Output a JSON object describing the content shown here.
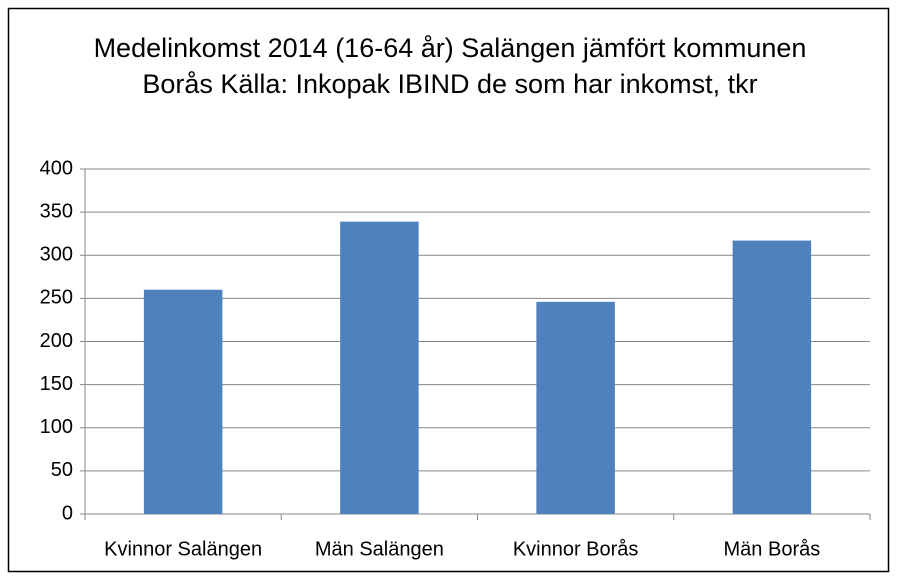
{
  "chart_data": {
    "type": "bar",
    "title": "Medelinkomst 2014 (16-64 år) Salängen jämfört kommunen Borås Källa: Inkopak IBIND de som har inkomst, tkr",
    "categories": [
      "Kvinnor Salängen",
      "Män Salängen",
      "Kvinnor Borås",
      "Män Borås"
    ],
    "values": [
      260,
      339,
      246,
      317
    ],
    "color": "#4f81bd",
    "ylim": [
      0,
      400
    ],
    "yticks": [
      0,
      50,
      100,
      150,
      200,
      250,
      300,
      350,
      400
    ],
    "grid": true
  }
}
